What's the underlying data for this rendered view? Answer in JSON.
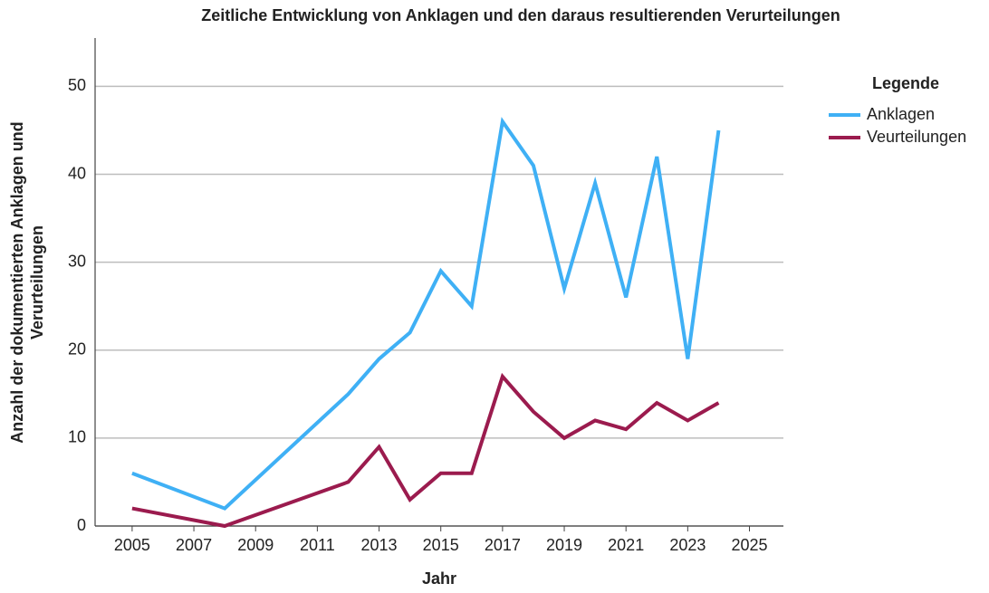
{
  "chart_data": {
    "type": "line",
    "title": "Zeitliche Entwicklung von Anklagen und den daraus resultierenden Verurteilungen",
    "x_label": "Jahr",
    "y_label": [
      "Anzahl der dokumentierten Anklagen und",
      "Verurteilungen"
    ],
    "legend_title": "Legende",
    "legend_position": "right",
    "x": [
      2005,
      2008,
      2012,
      2013,
      2014,
      2015,
      2016,
      2017,
      2018,
      2019,
      2020,
      2021,
      2022,
      2023,
      2024
    ],
    "series": [
      {
        "name": "Anklagen",
        "color": "#3fb0f5",
        "values": [
          6,
          2,
          15,
          19,
          22,
          29,
          25,
          46,
          41,
          27,
          39,
          26,
          42,
          19,
          45
        ]
      },
      {
        "name": "Veurteilungen",
        "color": "#9b1b4e",
        "values": [
          2,
          0,
          5,
          9,
          3,
          6,
          6,
          17,
          13,
          10,
          12,
          11,
          14,
          12,
          14
        ]
      }
    ],
    "xlim": [
      2003.8,
      2026.1
    ],
    "xticks": [
      2005,
      2007,
      2009,
      2011,
      2013,
      2015,
      2017,
      2019,
      2021,
      2023,
      2025
    ],
    "ylim": [
      0,
      55.5
    ],
    "yticks": [
      0,
      10,
      20,
      30,
      40,
      50
    ],
    "grid": true
  }
}
